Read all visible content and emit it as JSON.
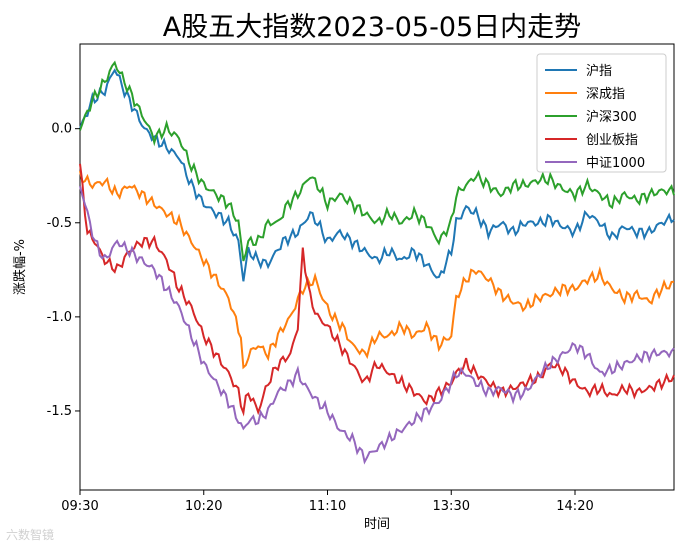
{
  "chart_data": {
    "type": "line",
    "title": "A股五大指数2023-05-05日内走势",
    "xlabel": "时间",
    "ylabel": "涨跌幅-%",
    "x_ticks": [
      "09:30",
      "10:20",
      "11:10",
      "13:30",
      "14:20"
    ],
    "x_tick_index": [
      0,
      50,
      100,
      150,
      200
    ],
    "x_count": 241,
    "ylim": [
      -1.92,
      0.45
    ],
    "y_ticks": [
      0.0,
      -0.5,
      -1.0,
      -1.5
    ],
    "y_tick_labels": [
      "0.0",
      "-0.5",
      "-1.0",
      "-1.5"
    ],
    "legend_position": "upper right",
    "grid": false,
    "series": [
      {
        "name": "沪指",
        "color": "#1f77b4",
        "anchors": [
          [
            0,
            0.0
          ],
          [
            5,
            0.15
          ],
          [
            10,
            0.2
          ],
          [
            14,
            0.32
          ],
          [
            18,
            0.2
          ],
          [
            22,
            0.1
          ],
          [
            26,
            0.0
          ],
          [
            30,
            -0.05
          ],
          [
            35,
            -0.1
          ],
          [
            40,
            -0.15
          ],
          [
            45,
            -0.3
          ],
          [
            50,
            -0.4
          ],
          [
            55,
            -0.45
          ],
          [
            60,
            -0.5
          ],
          [
            64,
            -0.6
          ],
          [
            66,
            -0.8
          ],
          [
            68,
            -0.65
          ],
          [
            72,
            -0.7
          ],
          [
            76,
            -0.72
          ],
          [
            82,
            -0.6
          ],
          [
            88,
            -0.55
          ],
          [
            93,
            -0.45
          ],
          [
            96,
            -0.5
          ],
          [
            100,
            -0.6
          ],
          [
            105,
            -0.55
          ],
          [
            110,
            -0.6
          ],
          [
            115,
            -0.65
          ],
          [
            120,
            -0.7
          ],
          [
            125,
            -0.65
          ],
          [
            130,
            -0.7
          ],
          [
            135,
            -0.65
          ],
          [
            140,
            -0.72
          ],
          [
            145,
            -0.8
          ],
          [
            150,
            -0.65
          ],
          [
            152,
            -0.5
          ],
          [
            156,
            -0.42
          ],
          [
            160,
            -0.45
          ],
          [
            165,
            -0.55
          ],
          [
            170,
            -0.5
          ],
          [
            175,
            -0.55
          ],
          [
            180,
            -0.5
          ],
          [
            186,
            -0.5
          ],
          [
            190,
            -0.48
          ],
          [
            195,
            -0.52
          ],
          [
            200,
            -0.55
          ],
          [
            205,
            -0.45
          ],
          [
            210,
            -0.5
          ],
          [
            215,
            -0.58
          ],
          [
            220,
            -0.52
          ],
          [
            225,
            -0.55
          ],
          [
            230,
            -0.55
          ],
          [
            235,
            -0.5
          ],
          [
            240,
            -0.47
          ]
        ],
        "values": []
      },
      {
        "name": "深成指",
        "color": "#ff7f0e",
        "anchors": [
          [
            0,
            -0.25
          ],
          [
            5,
            -0.3
          ],
          [
            10,
            -0.28
          ],
          [
            15,
            -0.35
          ],
          [
            20,
            -0.3
          ],
          [
            25,
            -0.35
          ],
          [
            30,
            -0.4
          ],
          [
            35,
            -0.45
          ],
          [
            40,
            -0.5
          ],
          [
            45,
            -0.6
          ],
          [
            50,
            -0.7
          ],
          [
            55,
            -0.8
          ],
          [
            60,
            -0.9
          ],
          [
            65,
            -1.1
          ],
          [
            66,
            -1.3
          ],
          [
            68,
            -1.2
          ],
          [
            72,
            -1.15
          ],
          [
            76,
            -1.2
          ],
          [
            80,
            -1.1
          ],
          [
            85,
            -1.0
          ],
          [
            90,
            -0.85
          ],
          [
            95,
            -0.8
          ],
          [
            98,
            -0.9
          ],
          [
            102,
            -1.0
          ],
          [
            106,
            -1.05
          ],
          [
            110,
            -1.15
          ],
          [
            115,
            -1.2
          ],
          [
            120,
            -1.1
          ],
          [
            125,
            -1.1
          ],
          [
            130,
            -1.05
          ],
          [
            135,
            -1.1
          ],
          [
            140,
            -1.05
          ],
          [
            145,
            -1.15
          ],
          [
            150,
            -1.1
          ],
          [
            152,
            -0.9
          ],
          [
            156,
            -0.8
          ],
          [
            160,
            -0.75
          ],
          [
            165,
            -0.8
          ],
          [
            170,
            -0.88
          ],
          [
            175,
            -0.92
          ],
          [
            180,
            -0.95
          ],
          [
            185,
            -0.9
          ],
          [
            190,
            -0.88
          ],
          [
            195,
            -0.85
          ],
          [
            200,
            -0.85
          ],
          [
            205,
            -0.8
          ],
          [
            210,
            -0.78
          ],
          [
            215,
            -0.85
          ],
          [
            220,
            -0.9
          ],
          [
            225,
            -0.88
          ],
          [
            230,
            -0.92
          ],
          [
            235,
            -0.85
          ],
          [
            240,
            -0.82
          ]
        ],
        "values": []
      },
      {
        "name": "沪深300",
        "color": "#2ca02c",
        "anchors": [
          [
            0,
            0.0
          ],
          [
            5,
            0.15
          ],
          [
            10,
            0.25
          ],
          [
            14,
            0.35
          ],
          [
            18,
            0.25
          ],
          [
            22,
            0.15
          ],
          [
            26,
            0.05
          ],
          [
            30,
            -0.05
          ],
          [
            35,
            0.0
          ],
          [
            40,
            -0.05
          ],
          [
            45,
            -0.2
          ],
          [
            50,
            -0.3
          ],
          [
            55,
            -0.35
          ],
          [
            60,
            -0.4
          ],
          [
            64,
            -0.5
          ],
          [
            66,
            -0.7
          ],
          [
            68,
            -0.6
          ],
          [
            72,
            -0.6
          ],
          [
            76,
            -0.5
          ],
          [
            80,
            -0.5
          ],
          [
            84,
            -0.4
          ],
          [
            88,
            -0.35
          ],
          [
            93,
            -0.25
          ],
          [
            96,
            -0.3
          ],
          [
            100,
            -0.4
          ],
          [
            105,
            -0.35
          ],
          [
            110,
            -0.4
          ],
          [
            115,
            -0.45
          ],
          [
            120,
            -0.5
          ],
          [
            125,
            -0.45
          ],
          [
            130,
            -0.5
          ],
          [
            135,
            -0.45
          ],
          [
            140,
            -0.5
          ],
          [
            145,
            -0.6
          ],
          [
            150,
            -0.5
          ],
          [
            152,
            -0.35
          ],
          [
            156,
            -0.3
          ],
          [
            160,
            -0.25
          ],
          [
            165,
            -0.3
          ],
          [
            170,
            -0.35
          ],
          [
            175,
            -0.3
          ],
          [
            180,
            -0.3
          ],
          [
            186,
            -0.27
          ],
          [
            190,
            -0.27
          ],
          [
            195,
            -0.32
          ],
          [
            200,
            -0.35
          ],
          [
            205,
            -0.3
          ],
          [
            210,
            -0.35
          ],
          [
            215,
            -0.4
          ],
          [
            220,
            -0.35
          ],
          [
            225,
            -0.38
          ],
          [
            230,
            -0.35
          ],
          [
            235,
            -0.33
          ],
          [
            240,
            -0.33
          ]
        ],
        "values": []
      },
      {
        "name": "创业板指",
        "color": "#d62728",
        "anchors": [
          [
            0,
            -0.2
          ],
          [
            3,
            -0.55
          ],
          [
            6,
            -0.6
          ],
          [
            10,
            -0.7
          ],
          [
            15,
            -0.75
          ],
          [
            20,
            -0.65
          ],
          [
            25,
            -0.6
          ],
          [
            30,
            -0.6
          ],
          [
            35,
            -0.7
          ],
          [
            40,
            -0.85
          ],
          [
            45,
            -0.95
          ],
          [
            50,
            -1.1
          ],
          [
            55,
            -1.2
          ],
          [
            60,
            -1.3
          ],
          [
            64,
            -1.4
          ],
          [
            66,
            -1.5
          ],
          [
            68,
            -1.4
          ],
          [
            72,
            -1.5
          ],
          [
            76,
            -1.35
          ],
          [
            80,
            -1.25
          ],
          [
            85,
            -1.2
          ],
          [
            88,
            -1.05
          ],
          [
            90,
            -0.65
          ],
          [
            93,
            -0.9
          ],
          [
            96,
            -1.0
          ],
          [
            100,
            -1.05
          ],
          [
            105,
            -1.15
          ],
          [
            110,
            -1.25
          ],
          [
            115,
            -1.35
          ],
          [
            120,
            -1.25
          ],
          [
            125,
            -1.3
          ],
          [
            130,
            -1.35
          ],
          [
            135,
            -1.4
          ],
          [
            140,
            -1.45
          ],
          [
            145,
            -1.4
          ],
          [
            150,
            -1.35
          ],
          [
            152,
            -1.3
          ],
          [
            156,
            -1.25
          ],
          [
            160,
            -1.3
          ],
          [
            165,
            -1.35
          ],
          [
            170,
            -1.4
          ],
          [
            175,
            -1.38
          ],
          [
            180,
            -1.35
          ],
          [
            186,
            -1.32
          ],
          [
            190,
            -1.25
          ],
          [
            195,
            -1.28
          ],
          [
            200,
            -1.35
          ],
          [
            205,
            -1.4
          ],
          [
            210,
            -1.38
          ],
          [
            215,
            -1.42
          ],
          [
            220,
            -1.38
          ],
          [
            225,
            -1.4
          ],
          [
            230,
            -1.38
          ],
          [
            235,
            -1.35
          ],
          [
            240,
            -1.32
          ]
        ],
        "values": []
      },
      {
        "name": "中证1000",
        "color": "#9467bd",
        "anchors": [
          [
            0,
            -0.3
          ],
          [
            3,
            -0.45
          ],
          [
            6,
            -0.6
          ],
          [
            10,
            -0.7
          ],
          [
            15,
            -0.6
          ],
          [
            20,
            -0.65
          ],
          [
            25,
            -0.7
          ],
          [
            30,
            -0.75
          ],
          [
            35,
            -0.85
          ],
          [
            40,
            -0.95
          ],
          [
            45,
            -1.1
          ],
          [
            50,
            -1.25
          ],
          [
            55,
            -1.35
          ],
          [
            60,
            -1.45
          ],
          [
            64,
            -1.55
          ],
          [
            66,
            -1.6
          ],
          [
            68,
            -1.55
          ],
          [
            72,
            -1.55
          ],
          [
            76,
            -1.5
          ],
          [
            80,
            -1.4
          ],
          [
            85,
            -1.35
          ],
          [
            88,
            -1.3
          ],
          [
            90,
            -1.35
          ],
          [
            93,
            -1.4
          ],
          [
            96,
            -1.45
          ],
          [
            100,
            -1.5
          ],
          [
            105,
            -1.6
          ],
          [
            110,
            -1.65
          ],
          [
            115,
            -1.75
          ],
          [
            120,
            -1.7
          ],
          [
            125,
            -1.65
          ],
          [
            130,
            -1.6
          ],
          [
            135,
            -1.55
          ],
          [
            140,
            -1.5
          ],
          [
            145,
            -1.45
          ],
          [
            150,
            -1.35
          ],
          [
            152,
            -1.3
          ],
          [
            156,
            -1.3
          ],
          [
            160,
            -1.35
          ],
          [
            165,
            -1.4
          ],
          [
            170,
            -1.38
          ],
          [
            175,
            -1.42
          ],
          [
            180,
            -1.4
          ],
          [
            186,
            -1.3
          ],
          [
            190,
            -1.25
          ],
          [
            195,
            -1.2
          ],
          [
            200,
            -1.15
          ],
          [
            205,
            -1.2
          ],
          [
            210,
            -1.3
          ],
          [
            215,
            -1.28
          ],
          [
            220,
            -1.25
          ],
          [
            225,
            -1.22
          ],
          [
            230,
            -1.2
          ],
          [
            235,
            -1.19
          ],
          [
            240,
            -1.19
          ]
        ],
        "values": []
      }
    ]
  },
  "watermark": "六数智镜"
}
